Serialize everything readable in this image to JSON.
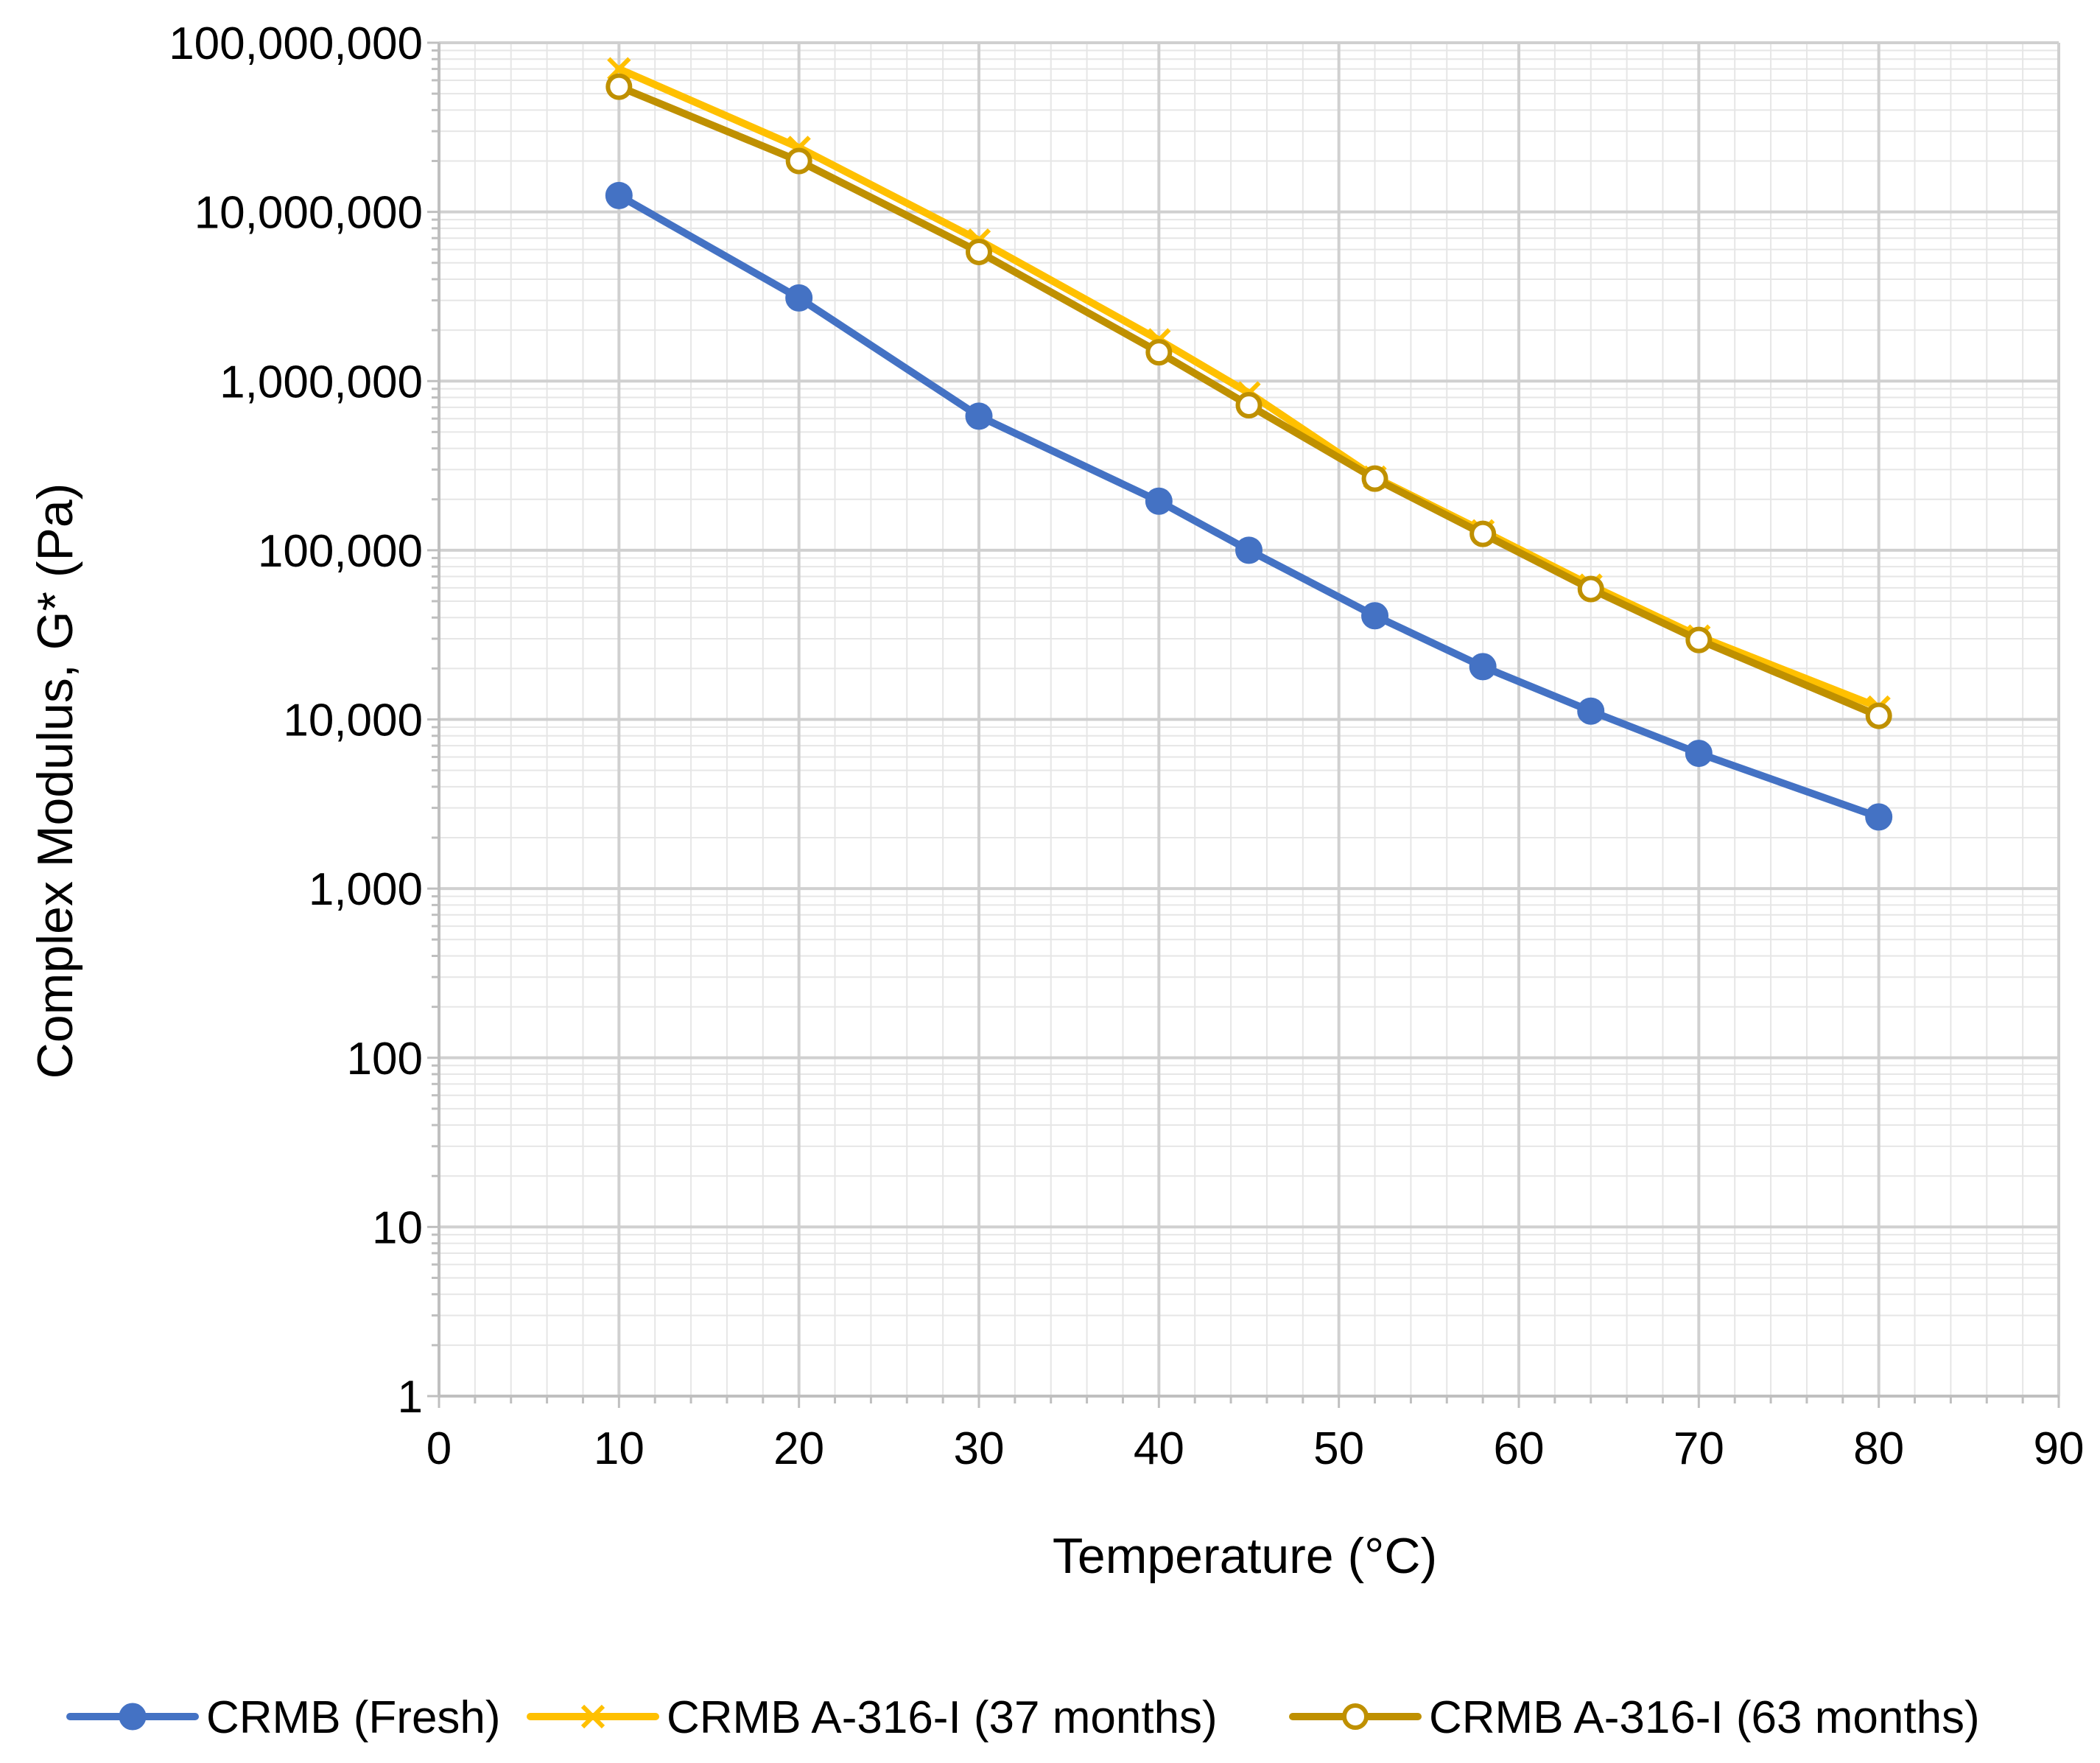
{
  "chart_data": {
    "type": "line",
    "title": "",
    "xlabel": "Temperature (°C)",
    "ylabel": "Complex Modulus, G* (Pa)",
    "xlim": [
      0,
      90
    ],
    "ylim": [
      1,
      100000000
    ],
    "yscale": "log",
    "x_ticks": [
      0,
      10,
      20,
      30,
      40,
      50,
      60,
      70,
      80,
      90
    ],
    "x_tick_labels": [
      "0",
      "10",
      "20",
      "30",
      "40",
      "50",
      "60",
      "70",
      "80",
      "90"
    ],
    "y_ticks": [
      1,
      10,
      100,
      1000,
      10000,
      100000,
      1000000,
      10000000,
      100000000
    ],
    "y_tick_labels": [
      "1",
      "10",
      "100",
      "1,000",
      "10,000",
      "100,000",
      "1,000,000",
      "10,000,000",
      "100,000,000"
    ],
    "grid": true,
    "legend_position": "bottom",
    "series": [
      {
        "name": "CRMB (Fresh)",
        "color": "#4472C4",
        "marker": "circle-filled",
        "x": [
          10,
          20,
          30,
          40,
          45,
          52,
          58,
          64,
          70,
          80
        ],
        "values": [
          12500000,
          3100000,
          620000,
          195000,
          100000,
          41000,
          20500,
          11200,
          6300,
          2650
        ]
      },
      {
        "name": "CRMB A-316-I  (37 months)",
        "color": "#FFC000",
        "marker": "x",
        "x": [
          10,
          20,
          30,
          40,
          45,
          52,
          58,
          64,
          70,
          80
        ],
        "values": [
          70000000,
          24000000,
          6800000,
          1750000,
          850000,
          270000,
          130000,
          62000,
          31000,
          11800
        ]
      },
      {
        "name": "CRMB A-316-I  (63 months)",
        "color": "#BF9000",
        "marker": "circle-open",
        "x": [
          10,
          20,
          30,
          40,
          45,
          52,
          58,
          64,
          70,
          80
        ],
        "values": [
          55000000,
          20000000,
          5800000,
          1480000,
          720000,
          265000,
          125000,
          59000,
          29500,
          10500
        ]
      }
    ]
  }
}
